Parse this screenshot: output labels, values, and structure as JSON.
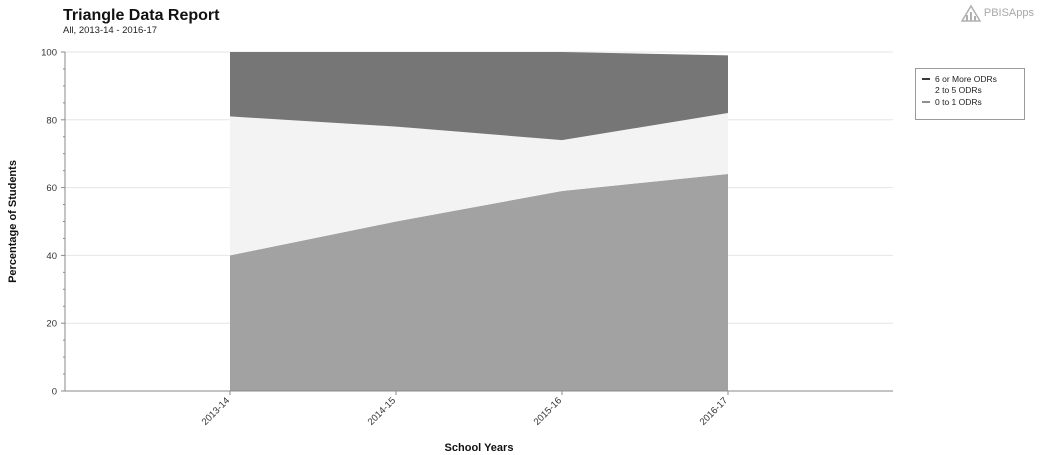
{
  "header": {
    "title": "Triangle Data Report",
    "subtitle": "All, 2013-14 - 2016-17"
  },
  "brand": {
    "name": "PBISApps"
  },
  "colors": {
    "six_or_more": "#767676",
    "two_to_five": "#f3f3f3",
    "zero_to_one": "#a2a2a2",
    "grid": "#e6e6e6",
    "axis": "#8a8a8a"
  },
  "chart_data": {
    "type": "area",
    "stacked": true,
    "categories": [
      "2013-14",
      "2014-15",
      "2015-16",
      "2016-17"
    ],
    "series": [
      {
        "name": "0 to 1 ODRs",
        "values": [
          40,
          50,
          59,
          64
        ]
      },
      {
        "name": "2 to 5 ODRs",
        "values": [
          41,
          28,
          15,
          18
        ]
      },
      {
        "name": "6 or More ODRs",
        "values": [
          19,
          22,
          26,
          17
        ]
      }
    ],
    "legend_order": [
      "6 or More ODRs",
      "2 to 5 ODRs",
      "0 to 1 ODRs"
    ],
    "xlabel": "School Years",
    "ylabel": "Percentage of Students",
    "ylim": [
      0,
      100
    ],
    "yticks": [
      0,
      20,
      40,
      60,
      80,
      100
    ],
    "grid": true,
    "legend_position": "right"
  }
}
